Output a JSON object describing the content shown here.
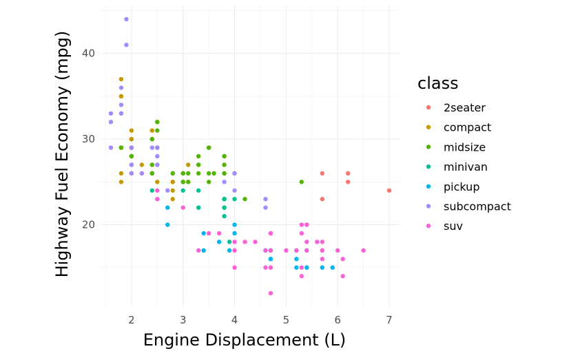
{
  "chart_data": {
    "type": "scatter",
    "xlabel": "Engine Displacement (L)",
    "ylabel": "Highway Fuel Economy (mpg)",
    "xlim": [
      1.4,
      7.2
    ],
    "ylim": [
      10.4,
      45.6
    ],
    "x_ticks": [
      2,
      3,
      4,
      5,
      6,
      7
    ],
    "y_ticks": [
      20,
      30,
      40
    ],
    "grid": true,
    "legend": {
      "title": "class",
      "placement": "right"
    },
    "series": [
      {
        "name": "2seater",
        "color": "#F8766D",
        "points": [
          [
            5.7,
            26
          ],
          [
            5.7,
            23
          ],
          [
            6.2,
            26
          ],
          [
            6.2,
            25
          ],
          [
            7.0,
            24
          ]
        ]
      },
      {
        "name": "compact",
        "color": "#C49A00",
        "points": [
          [
            1.8,
            29
          ],
          [
            1.8,
            29
          ],
          [
            2.0,
            31
          ],
          [
            2.0,
            30
          ],
          [
            2.8,
            26
          ],
          [
            2.8,
            26
          ],
          [
            3.1,
            27
          ],
          [
            1.8,
            26
          ],
          [
            1.8,
            25
          ],
          [
            2.0,
            28
          ],
          [
            2.0,
            29
          ],
          [
            2.8,
            25
          ],
          [
            2.8,
            25
          ],
          [
            3.1,
            25
          ],
          [
            3.1,
            25
          ],
          [
            2.2,
            26
          ],
          [
            2.2,
            27
          ],
          [
            2.4,
            31
          ],
          [
            2.4,
            30
          ],
          [
            3.0,
            26
          ],
          [
            3.3,
            27
          ],
          [
            1.8,
            33
          ],
          [
            1.8,
            35
          ],
          [
            1.8,
            37
          ],
          [
            1.8,
            35
          ],
          [
            1.8,
            29
          ],
          [
            2.0,
            26
          ],
          [
            2.0,
            29
          ],
          [
            2.0,
            29
          ],
          [
            2.0,
            30
          ],
          [
            2.5,
            29
          ],
          [
            2.5,
            25
          ],
          [
            2.5,
            27
          ],
          [
            2.8,
            23
          ],
          [
            2.8,
            24
          ],
          [
            2.4,
            27
          ],
          [
            2.4,
            26
          ]
        ]
      },
      {
        "name": "midsize",
        "color": "#53B400",
        "points": [
          [
            2.4,
            27
          ],
          [
            2.4,
            30
          ],
          [
            3.1,
            26
          ],
          [
            3.5,
            29
          ],
          [
            3.6,
            26
          ],
          [
            2.4,
            26
          ],
          [
            3.0,
            26
          ],
          [
            3.3,
            27
          ],
          [
            3.3,
            26
          ],
          [
            3.3,
            28
          ],
          [
            3.8,
            27
          ],
          [
            3.8,
            26
          ],
          [
            2.5,
            32
          ],
          [
            2.5,
            32
          ],
          [
            2.5,
            31
          ],
          [
            2.5,
            29
          ],
          [
            3.0,
            26
          ],
          [
            3.5,
            26
          ],
          [
            3.5,
            29
          ],
          [
            2.0,
            28
          ],
          [
            2.0,
            27
          ],
          [
            2.4,
            26
          ],
          [
            2.4,
            30
          ],
          [
            3.0,
            25
          ],
          [
            3.0,
            25
          ],
          [
            3.5,
            25
          ],
          [
            1.8,
            29
          ],
          [
            1.8,
            29
          ],
          [
            2.0,
            28
          ],
          [
            2.0,
            29
          ],
          [
            2.8,
            26
          ],
          [
            3.8,
            28
          ],
          [
            3.8,
            26
          ],
          [
            4.0,
            26
          ],
          [
            5.3,
            25
          ],
          [
            3.1,
            25
          ],
          [
            4.2,
            23
          ],
          [
            3.8,
            22
          ],
          [
            3.8,
            23
          ],
          [
            3.8,
            28
          ]
        ]
      },
      {
        "name": "minivan",
        "color": "#00C094",
        "points": [
          [
            2.4,
            24
          ],
          [
            3.0,
            24
          ],
          [
            3.3,
            22
          ],
          [
            3.3,
            22
          ],
          [
            3.3,
            24
          ],
          [
            3.8,
            22
          ],
          [
            3.8,
            21
          ],
          [
            4.0,
            23
          ],
          [
            3.8,
            23
          ],
          [
            3.8,
            23
          ],
          [
            3.9,
            18
          ]
        ]
      },
      {
        "name": "pickup",
        "color": "#00B6EB",
        "points": [
          [
            2.7,
            20
          ],
          [
            2.7,
            22
          ],
          [
            3.4,
            17
          ],
          [
            3.4,
            19
          ],
          [
            4.0,
            20
          ],
          [
            4.7,
            17
          ],
          [
            4.7,
            16
          ],
          [
            4.7,
            17
          ],
          [
            5.2,
            15
          ],
          [
            5.2,
            16
          ],
          [
            5.7,
            15
          ],
          [
            5.9,
            15
          ],
          [
            4.7,
            16
          ],
          [
            4.7,
            17
          ],
          [
            3.7,
            18
          ],
          [
            3.9,
            17
          ],
          [
            4.7,
            16
          ],
          [
            5.2,
            17
          ],
          [
            5.4,
            17
          ],
          [
            5.4,
            15
          ],
          [
            5.4,
            15
          ],
          [
            4.0,
            19
          ],
          [
            4.6,
            17
          ]
        ]
      },
      {
        "name": "subcompact",
        "color": "#A58AFF",
        "points": [
          [
            1.9,
            44
          ],
          [
            1.9,
            41
          ],
          [
            1.6,
            33
          ],
          [
            1.6,
            32
          ],
          [
            1.6,
            29
          ],
          [
            1.8,
            36
          ],
          [
            1.8,
            34
          ],
          [
            1.8,
            33
          ],
          [
            2.0,
            29
          ],
          [
            2.0,
            26
          ],
          [
            2.0,
            27
          ],
          [
            2.2,
            26
          ],
          [
            2.4,
            29
          ],
          [
            2.5,
            28
          ],
          [
            2.5,
            29
          ],
          [
            3.8,
            25
          ],
          [
            4.0,
            26
          ],
          [
            4.0,
            24
          ],
          [
            4.6,
            22
          ],
          [
            4.6,
            23
          ],
          [
            5.4,
            20
          ],
          [
            2.7,
            24
          ],
          [
            2.5,
            27
          ],
          [
            2.5,
            29
          ]
        ]
      },
      {
        "name": "suv",
        "color": "#FB61D7",
        "points": [
          [
            5.3,
            20
          ],
          [
            5.3,
            15
          ],
          [
            5.7,
            18
          ],
          [
            6.0,
            17
          ],
          [
            6.5,
            17
          ],
          [
            5.3,
            14
          ],
          [
            4.7,
            12
          ],
          [
            4.7,
            17
          ],
          [
            4.7,
            19
          ],
          [
            5.7,
            17
          ],
          [
            6.1,
            16
          ],
          [
            3.0,
            22
          ],
          [
            3.7,
            19
          ],
          [
            4.0,
            15
          ],
          [
            4.0,
            17
          ],
          [
            4.7,
            15
          ],
          [
            4.7,
            19
          ],
          [
            4.7,
            19
          ],
          [
            5.2,
            17
          ],
          [
            4.0,
            18
          ],
          [
            4.2,
            18
          ],
          [
            4.4,
            18
          ],
          [
            4.6,
            17
          ],
          [
            5.4,
            18
          ],
          [
            5.4,
            17
          ],
          [
            5.0,
            17
          ],
          [
            5.6,
            18
          ],
          [
            2.5,
            23
          ],
          [
            2.5,
            24
          ],
          [
            4.6,
            15
          ],
          [
            3.3,
            17
          ],
          [
            5.3,
            19
          ],
          [
            5.7,
            16
          ],
          [
            6.1,
            14
          ],
          [
            3.5,
            19
          ],
          [
            5.4,
            20
          ],
          [
            5.7,
            17
          ]
        ]
      }
    ]
  }
}
